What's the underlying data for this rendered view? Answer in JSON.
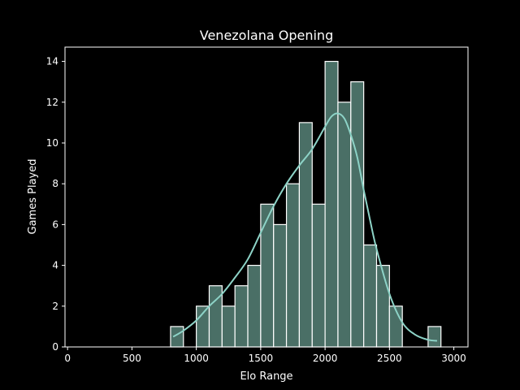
{
  "chart_data": {
    "type": "bar",
    "title": "Venezolana Opening",
    "xlabel": "Elo Range",
    "ylabel": "Games Played",
    "xlim": [
      -20,
      3110
    ],
    "ylim": [
      0,
      14.7
    ],
    "xticks": [
      0,
      500,
      1000,
      1500,
      2000,
      2500,
      3000
    ],
    "yticks": [
      0,
      2,
      4,
      6,
      8,
      10,
      12,
      14
    ],
    "grid": false,
    "legend": "none",
    "bin_width": 100,
    "bins": [
      {
        "x0": 800,
        "x1": 900,
        "count": 1
      },
      {
        "x0": 900,
        "x1": 1000,
        "count": 0
      },
      {
        "x0": 1000,
        "x1": 1100,
        "count": 2
      },
      {
        "x0": 1100,
        "x1": 1200,
        "count": 3
      },
      {
        "x0": 1200,
        "x1": 1300,
        "count": 2
      },
      {
        "x0": 1300,
        "x1": 1400,
        "count": 3
      },
      {
        "x0": 1400,
        "x1": 1500,
        "count": 4
      },
      {
        "x0": 1500,
        "x1": 1600,
        "count": 7
      },
      {
        "x0": 1600,
        "x1": 1700,
        "count": 6
      },
      {
        "x0": 1700,
        "x1": 1800,
        "count": 8
      },
      {
        "x0": 1800,
        "x1": 1900,
        "count": 11
      },
      {
        "x0": 1900,
        "x1": 2000,
        "count": 7
      },
      {
        "x0": 2000,
        "x1": 2100,
        "count": 14
      },
      {
        "x0": 2100,
        "x1": 2200,
        "count": 12
      },
      {
        "x0": 2200,
        "x1": 2300,
        "count": 13
      },
      {
        "x0": 2300,
        "x1": 2400,
        "count": 5
      },
      {
        "x0": 2400,
        "x1": 2500,
        "count": 4
      },
      {
        "x0": 2500,
        "x1": 2600,
        "count": 2
      },
      {
        "x0": 2600,
        "x1": 2700,
        "count": 0
      },
      {
        "x0": 2700,
        "x1": 2800,
        "count": 0
      },
      {
        "x0": 2800,
        "x1": 2900,
        "count": 1
      }
    ],
    "kde": {
      "x": [
        820,
        900,
        1000,
        1100,
        1200,
        1300,
        1400,
        1500,
        1600,
        1700,
        1800,
        1900,
        2000,
        2050,
        2100,
        2150,
        2200,
        2250,
        2300,
        2350,
        2400,
        2500,
        2600,
        2700,
        2800,
        2870
      ],
      "y": [
        0.5,
        0.8,
        1.3,
        2.0,
        2.6,
        3.4,
        4.3,
        5.6,
        6.9,
        8.0,
        8.9,
        9.7,
        10.8,
        11.3,
        11.45,
        11.2,
        10.4,
        9.3,
        7.7,
        6.2,
        4.8,
        2.6,
        1.2,
        0.6,
        0.35,
        0.3
      ]
    },
    "colors": {
      "bar_fill": "#4a6f66",
      "bar_edge": "#ffffff",
      "kde_line": "#8dd3c7",
      "background": "#000000",
      "foreground": "#ffffff"
    }
  }
}
